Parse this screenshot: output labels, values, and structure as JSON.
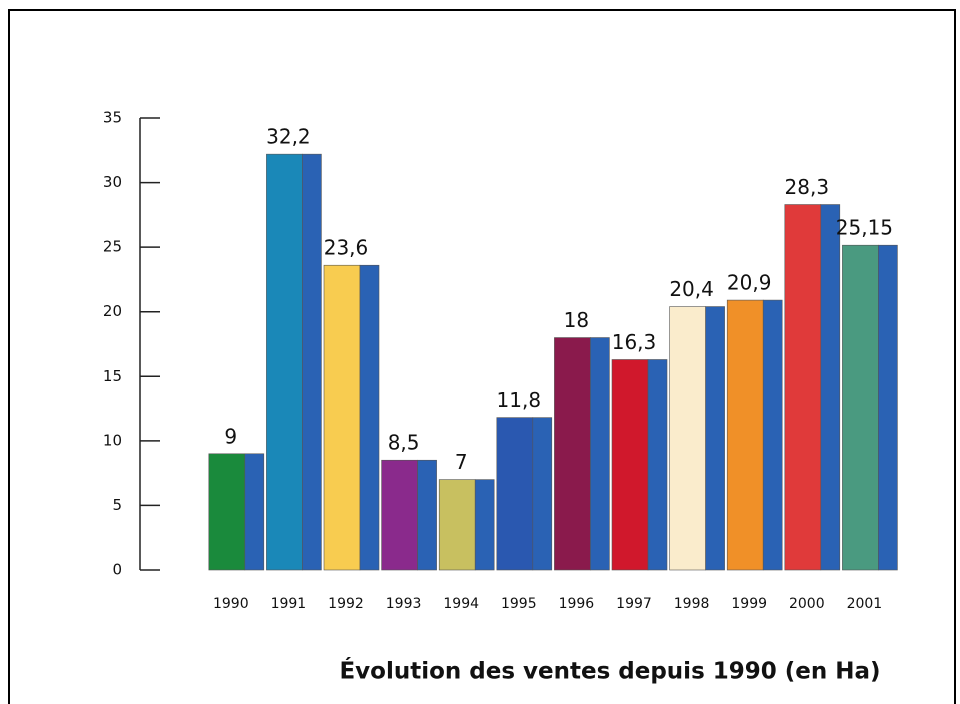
{
  "chart_data": {
    "type": "bar",
    "title": "Évolution des ventes depuis 1990 (en Ha)",
    "categories": [
      "1990",
      "1991",
      "1992",
      "1993",
      "1994",
      "1995",
      "1996",
      "1997",
      "1998",
      "1999",
      "2000",
      "2001"
    ],
    "values": [
      9,
      32.2,
      23.6,
      8.5,
      7,
      11.8,
      18,
      16.3,
      20.4,
      20.9,
      28.3,
      25.15
    ],
    "value_labels": [
      "9",
      "32,2",
      "23,6",
      "8,5",
      "7",
      "11,8",
      "18",
      "16,3",
      "20,4",
      "20,9",
      "28,3",
      "25,15"
    ],
    "colors": [
      "#1a8a3c",
      "#1a88b8",
      "#f8cc50",
      "#8a2a8c",
      "#c8c060",
      "#2a58b0",
      "#8a1a4c",
      "#d0182c",
      "#faeccc",
      "#f09028",
      "#e03a3a",
      "#4a9a80"
    ],
    "side_color": "#2a62b4",
    "ylim": [
      0,
      35
    ],
    "yticks": [
      0,
      5,
      10,
      15,
      20,
      25,
      30,
      35
    ]
  }
}
